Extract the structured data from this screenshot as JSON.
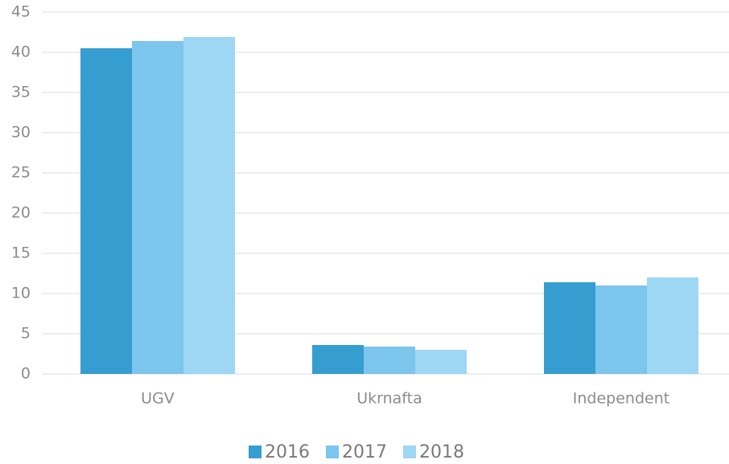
{
  "chart_data": {
    "type": "bar",
    "categories": [
      "UGV",
      "Ukrnafta",
      "Independent"
    ],
    "series": [
      {
        "name": "2016",
        "color": "#369dd1",
        "values": [
          40.5,
          3.6,
          11.4
        ]
      },
      {
        "name": "2017",
        "color": "#7cc5ec",
        "values": [
          41.4,
          3.4,
          11.0
        ]
      },
      {
        "name": "2018",
        "color": "#9dd7f3",
        "values": [
          41.9,
          3.0,
          12.0
        ]
      }
    ],
    "ylim": [
      0,
      45
    ],
    "yticks": [
      0,
      5,
      10,
      15,
      20,
      25,
      30,
      35,
      40,
      45
    ],
    "grid": true,
    "legend": "bottom"
  }
}
